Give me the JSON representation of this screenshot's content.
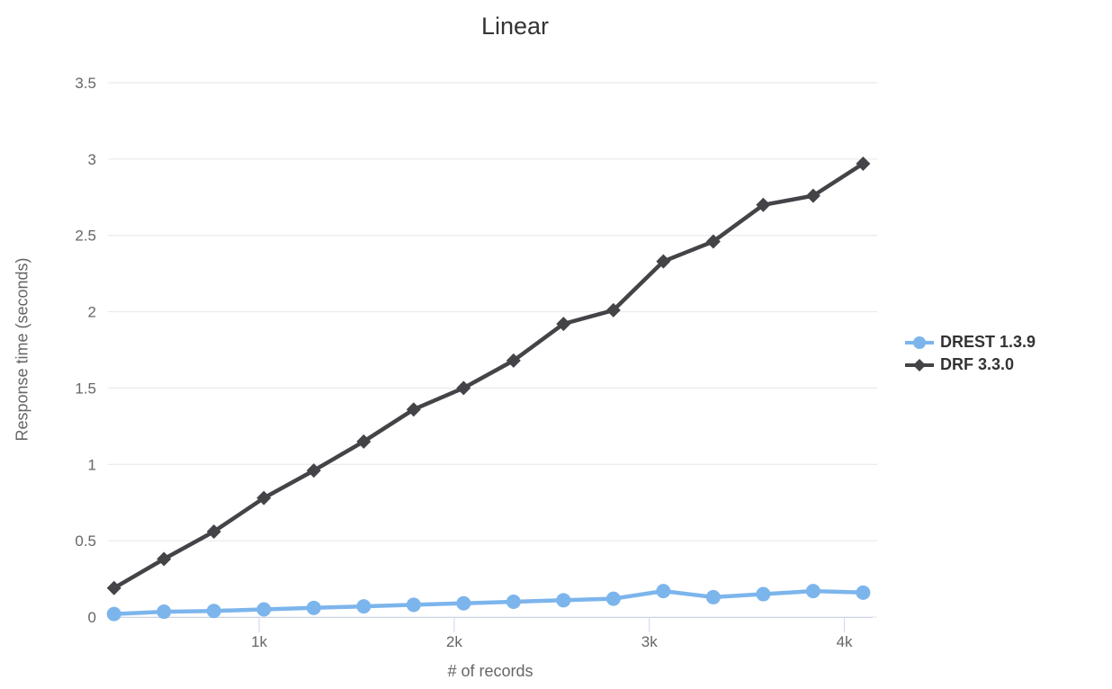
{
  "chart_data": {
    "type": "line",
    "title": "Linear",
    "xlabel": "# of records",
    "ylabel": "Response time (seconds)",
    "x": [
      256,
      512,
      768,
      1024,
      1280,
      1536,
      1792,
      2048,
      2304,
      2560,
      2816,
      3072,
      3328,
      3584,
      3840,
      4096
    ],
    "series": [
      {
        "name": "DREST 1.3.9",
        "color": "#7cb5ec",
        "marker": "circle",
        "values": [
          0.02,
          0.035,
          0.04,
          0.05,
          0.06,
          0.07,
          0.08,
          0.09,
          0.1,
          0.11,
          0.12,
          0.17,
          0.13,
          0.15,
          0.17,
          0.16
        ]
      },
      {
        "name": "DRF 3.3.0",
        "color": "#434348",
        "marker": "diamond",
        "values": [
          0.19,
          0.38,
          0.56,
          0.78,
          0.96,
          1.15,
          1.36,
          1.5,
          1.68,
          1.92,
          2.01,
          2.33,
          2.46,
          2.7,
          2.76,
          2.97
        ]
      }
    ],
    "xticks": [
      {
        "value": 1000,
        "label": "1k"
      },
      {
        "value": 2000,
        "label": "2k"
      },
      {
        "value": 3000,
        "label": "3k"
      },
      {
        "value": 4000,
        "label": "4k"
      }
    ],
    "yticks": [
      {
        "value": 0,
        "label": "0"
      },
      {
        "value": 0.5,
        "label": "0.5"
      },
      {
        "value": 1,
        "label": "1"
      },
      {
        "value": 1.5,
        "label": "1.5"
      },
      {
        "value": 2,
        "label": "2"
      },
      {
        "value": 2.5,
        "label": "2.5"
      },
      {
        "value": 3,
        "label": "3"
      },
      {
        "value": 3.5,
        "label": "3.5"
      }
    ],
    "xlim": [
      225,
      4145
    ],
    "ylim": [
      0,
      3.5
    ],
    "grid": true,
    "legend_position": "right",
    "colors": {
      "grid": "#e6e6e6",
      "axis_line": "#ccd6eb",
      "tick_label": "#666666",
      "axis_title": "#666666",
      "title": "#333333",
      "legend_text": "#333333",
      "background": "#ffffff"
    }
  }
}
